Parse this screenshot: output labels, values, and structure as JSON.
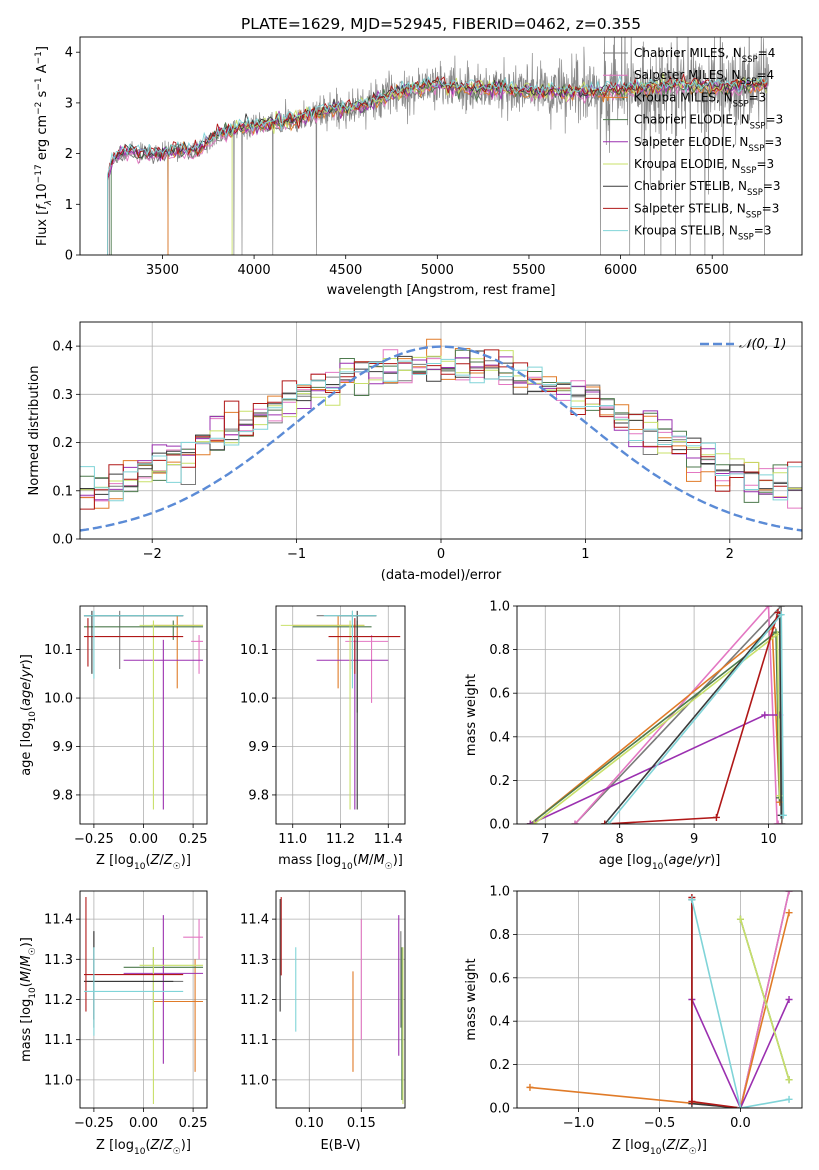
{
  "figure": {
    "title": "PLATE=1629, MJD=52945, FIBERID=0462, z=0.355"
  },
  "colors": {
    "Chabrier MILES": "#7a7a7a",
    "Salpeter MILES": "#e377c2",
    "Kroupa MILES": "#e07b28",
    "Chabrier ELODIE": "#4d7a4d",
    "Salpeter ELODIE": "#9b30b0",
    "Kroupa ELODIE": "#c8e06a",
    "Chabrier STELIB": "#3a3a3a",
    "Salpeter STELIB": "#b01818",
    "Kroupa STELIB": "#80d4d8",
    "data": "#888888",
    "gauss": "#5b8bd6",
    "grid": "#b0b0b0"
  },
  "legend_entries": [
    {
      "model": "Chabrier MILES",
      "label": "Chabrier MILES, N",
      "sub": "SSP",
      "suffix": "=4"
    },
    {
      "model": "Salpeter MILES",
      "label": "Salpeter MILES, N",
      "sub": "SSP",
      "suffix": "=4"
    },
    {
      "model": "Kroupa MILES",
      "label": "Kroupa MILES, N",
      "sub": "SSP",
      "suffix": "=3"
    },
    {
      "model": "Chabrier ELODIE",
      "label": "Chabrier ELODIE, N",
      "sub": "SSP",
      "suffix": "=3"
    },
    {
      "model": "Salpeter ELODIE",
      "label": "Salpeter ELODIE, N",
      "sub": "SSP",
      "suffix": "=3"
    },
    {
      "model": "Kroupa ELODIE",
      "label": "Kroupa ELODIE, N",
      "sub": "SSP",
      "suffix": "=3"
    },
    {
      "model": "Chabrier STELIB",
      "label": "Chabrier STELIB, N",
      "sub": "SSP",
      "suffix": "=3"
    },
    {
      "model": "Salpeter STELIB",
      "label": "Salpeter STELIB, N",
      "sub": "SSP",
      "suffix": "=3"
    },
    {
      "model": "Kroupa STELIB",
      "label": "Kroupa STELIB, N",
      "sub": "SSP",
      "suffix": "=3"
    }
  ],
  "chart_data": [
    {
      "id": "spectrum",
      "type": "line",
      "title": "PLATE=1629, MJD=52945, FIBERID=0462, z=0.355",
      "xlabel": "wavelength [Angstrom, rest frame]",
      "ylabel": "Flux [f_λ 10^-17 erg cm^-2 s^-1 A^-1]",
      "xlim": [
        3050,
        6990
      ],
      "ylim": [
        0,
        4.3
      ],
      "xticks": [
        3500,
        4000,
        4500,
        5000,
        5500,
        6000,
        6500
      ],
      "yticks": [
        0,
        1,
        2,
        3,
        4
      ],
      "grid": false,
      "legend": "right",
      "continuum_knots": [
        [
          3200,
          1.5
        ],
        [
          3230,
          1.9
        ],
        [
          3300,
          2.05
        ],
        [
          3400,
          2.0
        ],
        [
          3500,
          2.0
        ],
        [
          3620,
          2.1
        ],
        [
          3700,
          2.05
        ],
        [
          3760,
          2.3
        ],
        [
          3900,
          2.5
        ],
        [
          4000,
          2.55
        ],
        [
          4200,
          2.65
        ],
        [
          4400,
          2.85
        ],
        [
          4600,
          2.95
        ],
        [
          4800,
          3.25
        ],
        [
          5000,
          3.35
        ],
        [
          5100,
          3.3
        ],
        [
          5400,
          3.25
        ],
        [
          5700,
          3.2
        ],
        [
          6000,
          3.25
        ],
        [
          6300,
          3.35
        ],
        [
          6500,
          3.3
        ],
        [
          6800,
          3.35
        ]
      ],
      "data_range": [
        3200,
        6810
      ],
      "model_start": [
        3210,
        3200,
        3530,
        3220,
        3200,
        3880,
        3200,
        3200,
        3200
      ],
      "absorption_lines": [
        3530,
        3890,
        3934,
        4102,
        4340,
        5890,
        6050,
        6130,
        6220,
        6300,
        6380,
        6460,
        6560
      ]
    },
    {
      "id": "residuals",
      "type": "histogram",
      "xlabel": "(data-model)/error",
      "ylabel": "Normed distribution",
      "xlim": [
        -2.5,
        2.5
      ],
      "ylim": [
        0,
        0.45
      ],
      "xticks": [
        -2,
        -1,
        0,
        1,
        2
      ],
      "yticks": [
        0.0,
        0.1,
        0.2,
        0.3,
        0.4
      ],
      "bin_width": 0.1,
      "gauss_label": "𝒩(0, 1)",
      "grid": true,
      "legend": "top-right"
    },
    {
      "id": "age_vs_Z",
      "type": "scatter",
      "xlabel": "Z [log10(Z/Z☉)]",
      "ylabel": "age [log10(age/yr)]",
      "xlim": [
        -0.32,
        0.32
      ],
      "ylim": [
        9.74,
        10.19
      ],
      "xticks": [
        -0.25,
        0,
        0.25
      ],
      "xticklabels": [
        "−0.25",
        "0.00",
        "0.25"
      ],
      "yticks": [
        9.8,
        9.9,
        10.0,
        10.1
      ],
      "points": [
        {
          "model": "Chabrier MILES",
          "x": -0.12,
          "xlo": -0.3,
          "xhi": 0.2,
          "y": 10.17,
          "ylo": 10.06,
          "yhi": 10.18
        },
        {
          "model": "Salpeter MILES",
          "x": 0.28,
          "xlo": 0.24,
          "xhi": 0.3,
          "y": 10.117,
          "ylo": 10.05,
          "yhi": 10.13
        },
        {
          "model": "Kroupa MILES",
          "x": 0.17,
          "xlo": 0.04,
          "xhi": 0.3,
          "y": 10.15,
          "ylo": 10.02,
          "yhi": 10.17
        },
        {
          "model": "Chabrier ELODIE",
          "x": 0.15,
          "xlo": -0.3,
          "xhi": 0.3,
          "y": 10.147,
          "ylo": 10.12,
          "yhi": 10.16
        },
        {
          "model": "Salpeter ELODIE",
          "x": 0.1,
          "xlo": -0.1,
          "xhi": 0.3,
          "y": 10.078,
          "ylo": 9.77,
          "yhi": 10.12
        },
        {
          "model": "Kroupa ELODIE",
          "x": 0.05,
          "xlo": -0.02,
          "xhi": 0.3,
          "y": 10.15,
          "ylo": 9.77,
          "yhi": 10.16
        },
        {
          "model": "Chabrier STELIB",
          "x": -0.26,
          "xlo": -0.3,
          "xhi": 0.2,
          "y": 10.17,
          "ylo": 10.05,
          "yhi": 10.18
        },
        {
          "model": "Salpeter STELIB",
          "x": -0.28,
          "xlo": -0.3,
          "xhi": 0.2,
          "y": 10.127,
          "ylo": 10.065,
          "yhi": 10.165
        },
        {
          "model": "Kroupa STELIB",
          "x": -0.25,
          "xlo": -0.3,
          "xhi": 0.2,
          "y": 10.17,
          "ylo": 10.04,
          "yhi": 10.18
        }
      ]
    },
    {
      "id": "age_vs_mass",
      "type": "scatter",
      "xlabel": "mass [log10(M/M☉)]",
      "xlim": [
        10.93,
        11.47
      ],
      "ylim": [
        9.74,
        10.19
      ],
      "xticks": [
        11.0,
        11.2,
        11.4
      ],
      "xticklabels": [
        "11.0",
        "11.2",
        "11.4"
      ],
      "yticks": [
        9.8,
        9.9,
        10.0,
        10.1
      ],
      "points": [
        {
          "model": "Chabrier MILES",
          "x": 11.25,
          "xlo": 11.1,
          "xhi": 11.35,
          "y": 10.17,
          "ylo": 10.06,
          "yhi": 10.18
        },
        {
          "model": "Salpeter MILES",
          "x": 11.33,
          "xlo": 11.22,
          "xhi": 11.4,
          "y": 10.117,
          "ylo": 9.99,
          "yhi": 10.13
        },
        {
          "model": "Kroupa MILES",
          "x": 11.19,
          "xlo": 11.0,
          "xhi": 11.3,
          "y": 10.15,
          "ylo": 10.02,
          "yhi": 10.17
        },
        {
          "model": "Chabrier ELODIE",
          "x": 11.27,
          "xlo": 11.0,
          "xhi": 11.33,
          "y": 10.147,
          "ylo": 9.97,
          "yhi": 10.16
        },
        {
          "model": "Salpeter ELODIE",
          "x": 11.26,
          "xlo": 11.1,
          "xhi": 11.4,
          "y": 10.078,
          "ylo": 9.77,
          "yhi": 10.12
        },
        {
          "model": "Kroupa ELODIE",
          "x": 11.24,
          "xlo": 10.95,
          "xhi": 11.3,
          "y": 10.15,
          "ylo": 9.77,
          "yhi": 10.16
        },
        {
          "model": "Chabrier STELIB",
          "x": 11.27,
          "xlo": 11.2,
          "xhi": 11.35,
          "y": 10.17,
          "ylo": 9.77,
          "yhi": 10.18
        },
        {
          "model": "Salpeter STELIB",
          "x": 11.26,
          "xlo": 11.15,
          "xhi": 11.45,
          "y": 10.127,
          "ylo": 10.05,
          "yhi": 10.165
        },
        {
          "model": "Kroupa STELIB",
          "x": 11.25,
          "xlo": 11.13,
          "xhi": 11.35,
          "y": 10.17,
          "ylo": 10.02,
          "yhi": 10.18
        }
      ]
    },
    {
      "id": "mass_weight_vs_age",
      "type": "line",
      "xlabel": "age [log10(age/yr)]",
      "ylabel": "mass weight",
      "xlim": [
        6.62,
        10.45
      ],
      "ylim": [
        0,
        1
      ],
      "xticks": [
        7,
        8,
        9,
        10
      ],
      "yticks": [
        0.0,
        0.2,
        0.4,
        0.6,
        0.8,
        1.0
      ],
      "grid": true,
      "series": [
        {
          "model": "Chabrier MILES",
          "points": [
            [
              7.4,
              0.0
            ],
            [
              10.17,
              1.0
            ],
            [
              10.18,
              0.0
            ]
          ]
        },
        {
          "model": "Salpeter MILES",
          "points": [
            [
              7.4,
              0.0
            ],
            [
              10.0,
              1.0
            ],
            [
              10.117,
              0.0
            ],
            [
              10.13,
              0.0
            ]
          ]
        },
        {
          "model": "Kroupa MILES",
          "points": [
            [
              6.8,
              0.0
            ],
            [
              10.05,
              0.9
            ],
            [
              10.15,
              0.1
            ]
          ]
        },
        {
          "model": "Chabrier ELODIE",
          "points": [
            [
              6.8,
              0.0
            ],
            [
              10.1,
              0.88
            ],
            [
              10.147,
              0.12
            ]
          ]
        },
        {
          "model": "Salpeter ELODIE",
          "points": [
            [
              6.8,
              0.0
            ],
            [
              9.95,
              0.5
            ],
            [
              10.15,
              0.5
            ]
          ]
        },
        {
          "model": "Kroupa ELODIE",
          "points": [
            [
              6.85,
              0.0
            ],
            [
              10.12,
              0.87
            ],
            [
              10.15,
              0.13
            ]
          ]
        },
        {
          "model": "Chabrier STELIB",
          "points": [
            [
              7.8,
              0.0
            ],
            [
              10.15,
              0.96
            ],
            [
              10.17,
              0.04
            ]
          ]
        },
        {
          "model": "Salpeter STELIB",
          "points": [
            [
              7.8,
              0.0
            ],
            [
              9.3,
              0.03
            ],
            [
              10.127,
              0.97
            ]
          ]
        },
        {
          "model": "Kroupa STELIB",
          "points": [
            [
              7.85,
              0.0
            ],
            [
              10.17,
              0.96
            ],
            [
              10.2,
              0.04
            ]
          ]
        }
      ]
    },
    {
      "id": "mass_vs_Z",
      "type": "scatter",
      "xlabel": "Z [log10(Z/Z☉)]",
      "ylabel": "mass [log10(M/M☉)]",
      "xlim": [
        -0.32,
        0.32
      ],
      "ylim": [
        10.93,
        11.47
      ],
      "xticks": [
        -0.25,
        0,
        0.25
      ],
      "xticklabels": [
        "−0.25",
        "0.00",
        "0.25"
      ],
      "yticks": [
        11.0,
        11.1,
        11.2,
        11.3,
        11.4
      ],
      "points": [
        {
          "model": "Chabrier MILES",
          "x": -0.25,
          "xlo": -0.3,
          "xhi": 0.2,
          "y": 11.245,
          "ylo": 11.13,
          "yhi": 11.37
        },
        {
          "model": "Salpeter MILES",
          "x": 0.28,
          "xlo": 0.2,
          "xhi": 0.3,
          "y": 11.355,
          "ylo": 11.3,
          "yhi": 11.4
        },
        {
          "model": "Kroupa MILES",
          "x": 0.26,
          "xlo": 0.05,
          "xhi": 0.3,
          "y": 11.195,
          "ylo": 11.02,
          "yhi": 11.3
        },
        {
          "model": "Chabrier ELODIE",
          "x": 0.05,
          "xlo": -0.1,
          "xhi": 0.3,
          "y": 11.28,
          "ylo": 11.1,
          "yhi": 11.33
        },
        {
          "model": "Salpeter ELODIE",
          "x": 0.1,
          "xlo": -0.1,
          "xhi": 0.3,
          "y": 11.265,
          "ylo": 11.04,
          "yhi": 11.41
        },
        {
          "model": "Kroupa ELODIE",
          "x": 0.05,
          "xlo": -0.02,
          "xhi": 0.3,
          "y": 11.285,
          "ylo": 10.94,
          "yhi": 11.33
        },
        {
          "model": "Chabrier STELIB",
          "x": -0.25,
          "xlo": -0.3,
          "xhi": 0.15,
          "y": 11.245,
          "ylo": 11.15,
          "yhi": 11.37
        },
        {
          "model": "Salpeter STELIB",
          "x": -0.29,
          "xlo": -0.3,
          "xhi": 0.2,
          "y": 11.262,
          "ylo": 11.17,
          "yhi": 11.455
        },
        {
          "model": "Kroupa STELIB",
          "x": -0.25,
          "xlo": -0.3,
          "xhi": 0.2,
          "y": 11.22,
          "ylo": 11.11,
          "yhi": 11.33
        }
      ]
    },
    {
      "id": "mass_vs_EBV",
      "type": "scatter",
      "xlabel": "E(B-V)",
      "xlim": [
        0.068,
        0.192
      ],
      "ylim": [
        10.93,
        11.47
      ],
      "xticks": [
        0.1,
        0.15
      ],
      "xticklabels": [
        "0.10",
        "0.15"
      ],
      "yticks": [
        11.0,
        11.1,
        11.2,
        11.3,
        11.4
      ],
      "points": [
        {
          "model": "Chabrier MILES",
          "x": 0.188,
          "y": 11.245,
          "ylo": 11.13,
          "yhi": 11.37
        },
        {
          "model": "Salpeter MILES",
          "x": 0.15,
          "y": 11.3,
          "ylo": 11.1,
          "yhi": 11.4
        },
        {
          "model": "Kroupa MILES",
          "x": 0.142,
          "y": 11.195,
          "ylo": 11.02,
          "yhi": 11.27
        },
        {
          "model": "Chabrier ELODIE",
          "x": 0.189,
          "y": 11.2,
          "ylo": 10.95,
          "yhi": 11.33
        },
        {
          "model": "Salpeter ELODIE",
          "x": 0.186,
          "y": 11.265,
          "ylo": 11.06,
          "yhi": 11.41
        },
        {
          "model": "Kroupa ELODIE",
          "x": 0.19,
          "y": 11.2,
          "ylo": 10.94,
          "yhi": 11.33
        },
        {
          "model": "Chabrier STELIB",
          "x": 0.072,
          "y": 11.245,
          "ylo": 11.17,
          "yhi": 11.45
        },
        {
          "model": "Salpeter STELIB",
          "x": 0.073,
          "y": 11.35,
          "ylo": 11.26,
          "yhi": 11.455
        },
        {
          "model": "Kroupa STELIB",
          "x": 0.087,
          "y": 11.22,
          "ylo": 11.12,
          "yhi": 11.33
        }
      ]
    },
    {
      "id": "mass_weight_vs_Z",
      "type": "line",
      "xlabel": "Z [log10(Z/Z☉)]",
      "ylabel": "mass weight",
      "xlim": [
        -1.38,
        0.38
      ],
      "ylim": [
        0,
        1
      ],
      "xticks": [
        -1.0,
        -0.5,
        0.0
      ],
      "xticklabels": [
        "−1.0",
        "−0.5",
        "0.0"
      ],
      "yticks": [
        0.0,
        0.2,
        0.4,
        0.6,
        0.8,
        1.0
      ],
      "grid": true,
      "series": [
        {
          "model": "Chabrier MILES",
          "points": [
            [
              0.3,
              1.0
            ],
            [
              0.0,
              0.0
            ]
          ]
        },
        {
          "model": "Salpeter MILES",
          "points": [
            [
              0.3,
              1.0
            ],
            [
              0.0,
              0.0
            ]
          ]
        },
        {
          "model": "Kroupa MILES",
          "points": [
            [
              -1.3,
              0.095
            ],
            [
              0.0,
              0.0
            ],
            [
              0.3,
              0.9
            ]
          ]
        },
        {
          "model": "Chabrier ELODIE",
          "points": [
            [
              0.0,
              0.87
            ],
            [
              0.3,
              0.13
            ]
          ]
        },
        {
          "model": "Salpeter ELODIE",
          "points": [
            [
              -0.3,
              0.5
            ],
            [
              0.0,
              0.0
            ],
            [
              0.3,
              0.5
            ]
          ]
        },
        {
          "model": "Kroupa ELODIE",
          "points": [
            [
              0.0,
              0.87
            ],
            [
              0.3,
              0.13
            ]
          ]
        },
        {
          "model": "Chabrier STELIB",
          "points": [
            [
              -0.3,
              0.96
            ],
            [
              -0.3,
              0.02
            ],
            [
              0.0,
              0.0
            ]
          ]
        },
        {
          "model": "Salpeter STELIB",
          "points": [
            [
              -0.3,
              0.97
            ],
            [
              -0.3,
              0.03
            ],
            [
              0.0,
              0.0
            ]
          ]
        },
        {
          "model": "Kroupa STELIB",
          "points": [
            [
              -0.3,
              0.96
            ],
            [
              0.0,
              0.0
            ],
            [
              0.3,
              0.04
            ]
          ]
        }
      ]
    }
  ]
}
